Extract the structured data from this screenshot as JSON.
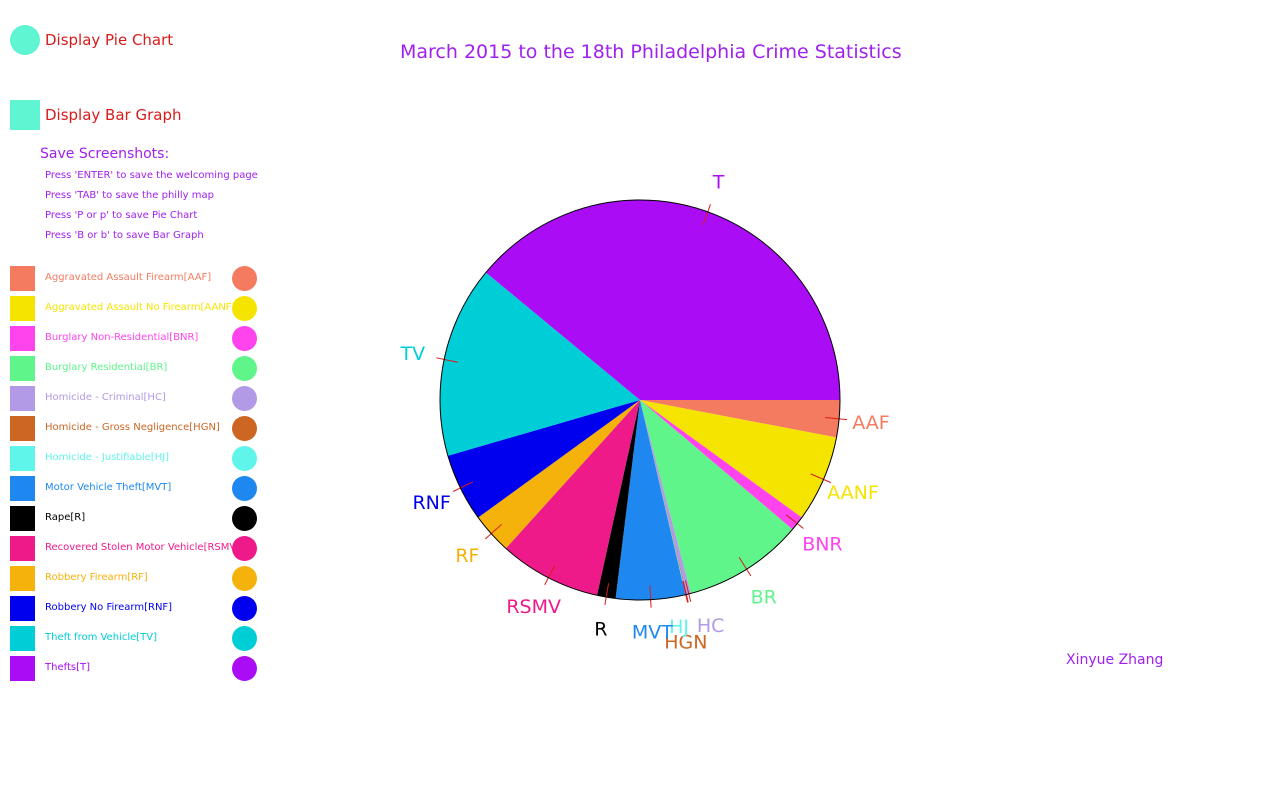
{
  "controls": {
    "pie_button_label": "Display Pie Chart",
    "bar_button_label": "Display Bar Graph",
    "pie_button_color": "#5ff5d2",
    "bar_button_color": "#5ff5d2"
  },
  "save_help": {
    "heading": "Save Screenshots:",
    "lines": [
      "Press 'ENTER' to save the welcoming page",
      "Press 'TAB' to save the philly map",
      "Press 'P or p' to save Pie Chart",
      "Press 'B or b' to save Bar Graph"
    ]
  },
  "legend": [
    {
      "label": "Aggravated Assault Firearm[AAF]",
      "color": "#f47b60"
    },
    {
      "label": "Aggravated Assault No Firearm[AANF]",
      "color": "#f5e400"
    },
    {
      "label": "Burglary Non-Residential[BNR]",
      "color": "#ff44ee"
    },
    {
      "label": "Burglary Residential[BR]",
      "color": "#5ff58b"
    },
    {
      "label": "Homicide - Criminal[HC]",
      "color": "#b39ae6"
    },
    {
      "label": "Homicide - Gross Negligence[HGN]",
      "color": "#cc6622"
    },
    {
      "label": "Homicide - Justifiable[HJ]",
      "color": "#5ff5ea"
    },
    {
      "label": "Motor Vehicle Theft[MVT]",
      "color": "#1e88f0"
    },
    {
      "label": "Rape[R]",
      "color": "#000000"
    },
    {
      "label": "Recovered Stolen Motor Vehicle[RSMV]",
      "color": "#ee1a8a"
    },
    {
      "label": "Robbery Firearm[RF]",
      "color": "#f5b20a"
    },
    {
      "label": "Robbery No Firearm[RNF]",
      "color": "#0000ee"
    },
    {
      "label": "Theft from Vehicle[TV]",
      "color": "#00ced6"
    },
    {
      "label": "Thefts[T]",
      "color": "#aa0cf5"
    }
  ],
  "title": "March 2015 to the 18th Philadelphia Crime Statistics",
  "author": "Xinyue Zhang",
  "chart_data": {
    "type": "pie",
    "title": "March 2015 to the 18th Philadelphia Crime Statistics",
    "start_angle_deg": 0,
    "direction": "clockwise",
    "label_text_color": "#000000",
    "slices": [
      {
        "code": "AAF",
        "value": 3.0,
        "color": "#f47b60"
      },
      {
        "code": "AANF",
        "value": 7.0,
        "color": "#f5e400"
      },
      {
        "code": "BNR",
        "value": 1.2,
        "color": "#ff44ee"
      },
      {
        "code": "BR",
        "value": 9.7,
        "color": "#5ff58b"
      },
      {
        "code": "HC",
        "value": 0.35,
        "color": "#b39ae6"
      },
      {
        "code": "HGN",
        "value": 0.05,
        "color": "#cc6622"
      },
      {
        "code": "HJ",
        "value": 0.05,
        "color": "#5ff5ea"
      },
      {
        "code": "MVT",
        "value": 5.6,
        "color": "#1e88f0"
      },
      {
        "code": "R",
        "value": 1.5,
        "color": "#000000"
      },
      {
        "code": "RSMV",
        "value": 8.25,
        "color": "#ee1a8a"
      },
      {
        "code": "RF",
        "value": 3.3,
        "color": "#f5b20a"
      },
      {
        "code": "RNF",
        "value": 5.5,
        "color": "#0000ee"
      },
      {
        "code": "TV",
        "value": 15.5,
        "color": "#00ced6"
      },
      {
        "code": "T",
        "value": 39.0,
        "color": "#aa0cf5"
      }
    ]
  }
}
